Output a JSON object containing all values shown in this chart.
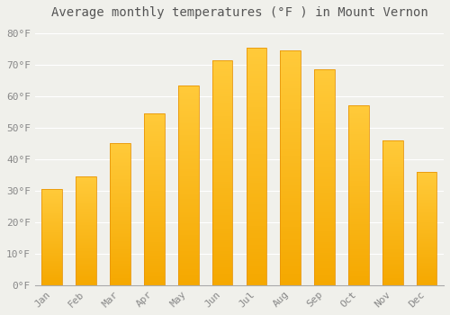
{
  "months": [
    "Jan",
    "Feb",
    "Mar",
    "Apr",
    "May",
    "Jun",
    "Jul",
    "Aug",
    "Sep",
    "Oct",
    "Nov",
    "Dec"
  ],
  "values": [
    30.5,
    34.5,
    45.0,
    54.5,
    63.5,
    71.5,
    75.5,
    74.5,
    68.5,
    57.0,
    46.0,
    36.0
  ],
  "bar_color_top": "#FFCA3A",
  "bar_color_bottom": "#F5A800",
  "bar_edge_color": "#E8960A",
  "title": "Average monthly temperatures (°F ) in Mount Vernon",
  "ylim": [
    0,
    83
  ],
  "yticks": [
    0,
    10,
    20,
    30,
    40,
    50,
    60,
    70,
    80
  ],
  "ytick_labels": [
    "0°F",
    "10°F",
    "20°F",
    "30°F",
    "40°F",
    "50°F",
    "60°F",
    "70°F",
    "80°F"
  ],
  "background_color": "#f0f0eb",
  "grid_color": "#ffffff",
  "title_fontsize": 10,
  "tick_fontsize": 8,
  "bar_width": 0.6
}
